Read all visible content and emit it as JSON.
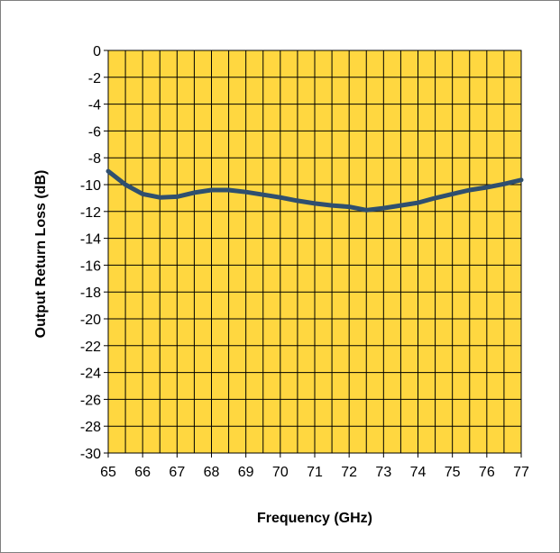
{
  "chart_data": {
    "type": "line",
    "title": "",
    "xlabel": "Frequency (GHz)",
    "ylabel": "Output Return Loss (dB)",
    "xlim": [
      65,
      77
    ],
    "ylim": [
      -30,
      0
    ],
    "x_ticks": [
      65,
      66,
      67,
      68,
      69,
      70,
      71,
      72,
      73,
      74,
      75,
      76,
      77
    ],
    "y_ticks": [
      0,
      -2,
      -4,
      -6,
      -8,
      -10,
      -12,
      -14,
      -16,
      -18,
      -20,
      -22,
      -24,
      -26,
      -28,
      -30
    ],
    "x_minor_step": 0.5,
    "grid": true,
    "legend": "none",
    "colors": {
      "plot_background": "#FFD740",
      "grid": "#000000",
      "line": "#2F4F6F"
    },
    "series": [
      {
        "x": [
          65,
          65.5,
          66,
          66.5,
          67,
          67.5,
          68,
          68.5,
          69,
          69.5,
          70,
          70.5,
          71,
          71.5,
          72,
          72.5,
          73,
          73.5,
          74,
          74.5,
          75,
          75.5,
          76,
          76.5,
          77
        ],
        "y": [
          -9.0,
          -10.0,
          -10.7,
          -10.95,
          -10.9,
          -10.6,
          -10.4,
          -10.4,
          -10.55,
          -10.75,
          -10.95,
          -11.2,
          -11.4,
          -11.55,
          -11.65,
          -11.9,
          -11.75,
          -11.55,
          -11.35,
          -11.0,
          -10.7,
          -10.4,
          -10.2,
          -9.95,
          -9.65
        ]
      }
    ]
  }
}
